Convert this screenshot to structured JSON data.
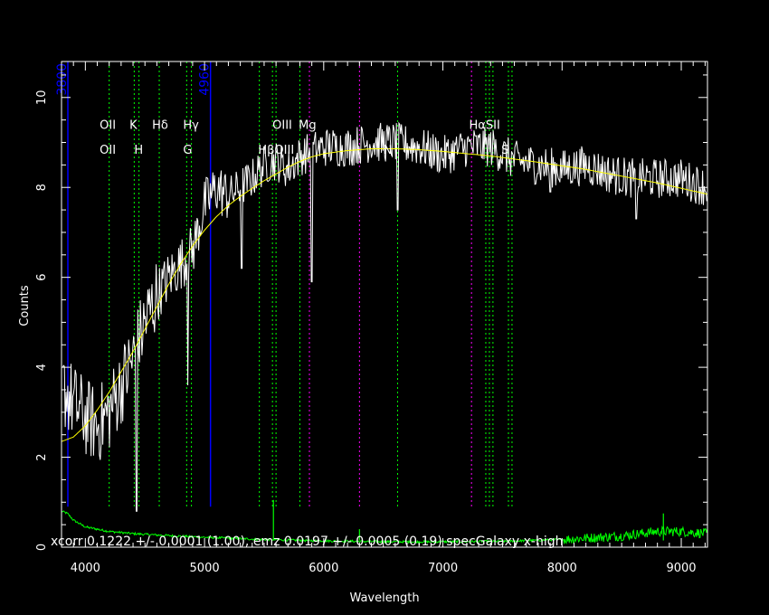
{
  "chart_data": {
    "type": "line",
    "xlabel": "Wavelength",
    "ylabel": "Counts",
    "xlim": [
      3800,
      9220
    ],
    "ylim": [
      0,
      10.8
    ],
    "xticks_major": [
      4000,
      5000,
      6000,
      7000,
      8000,
      9000
    ],
    "yticks_major": [
      0,
      2,
      4,
      6,
      8,
      10
    ],
    "footer_text": "xcorr  0.1222 +/-  0.0001 (1.00), emz  0.0197 +/-  0.0005 (0.19) specGalaxy x-high",
    "grid": false,
    "colors": {
      "background": "#000000",
      "axes": "#ffffff",
      "spectrum": "#ffffff",
      "model": "#ffff00",
      "error": "#00ff00",
      "emission_line": "#00ff00",
      "sky_line": "#ff00ff",
      "blue_marker": "#0000ff"
    },
    "blue_markers": [
      {
        "x": 3800,
        "label": "3800"
      },
      {
        "x": 5050,
        "label": "4960"
      }
    ],
    "spectral_lines": [
      {
        "x": 4200,
        "color": "green"
      },
      {
        "x": 4410,
        "color": "green"
      },
      {
        "x": 4450,
        "color": "green"
      },
      {
        "x": 4620,
        "color": "green"
      },
      {
        "x": 4850,
        "color": "green"
      },
      {
        "x": 4890,
        "color": "green"
      },
      {
        "x": 5460,
        "color": "green"
      },
      {
        "x": 5570,
        "color": "green"
      },
      {
        "x": 5600,
        "color": "green"
      },
      {
        "x": 5800,
        "color": "green"
      },
      {
        "x": 5880,
        "color": "magenta"
      },
      {
        "x": 6300,
        "color": "magenta"
      },
      {
        "x": 6620,
        "color": "green"
      },
      {
        "x": 7240,
        "color": "magenta"
      },
      {
        "x": 7360,
        "color": "green"
      },
      {
        "x": 7390,
        "color": "green"
      },
      {
        "x": 7420,
        "color": "green"
      },
      {
        "x": 7550,
        "color": "green"
      },
      {
        "x": 7580,
        "color": "green"
      }
    ],
    "line_labels": [
      {
        "text": "OII",
        "x": 4120,
        "y": 9.3
      },
      {
        "text": "K",
        "x": 4370,
        "y": 9.3
      },
      {
        "text": "Hδ",
        "x": 4560,
        "y": 9.3
      },
      {
        "text": "Hγ",
        "x": 4820,
        "y": 9.3
      },
      {
        "text": "OIII",
        "x": 5570,
        "y": 9.3
      },
      {
        "text": "Mg",
        "x": 5790,
        "y": 9.3
      },
      {
        "text": "HαSII",
        "x": 7220,
        "y": 9.3
      },
      {
        "text": "OII",
        "x": 4120,
        "y": 8.75
      },
      {
        "text": "H",
        "x": 4410,
        "y": 8.75
      },
      {
        "text": "G",
        "x": 4820,
        "y": 8.75
      },
      {
        "text": "HβOIII",
        "x": 5450,
        "y": 8.75
      },
      {
        "text": "N",
        "x": 6500,
        "y": 8.75
      },
      {
        "text": "S",
        "x": 7490,
        "y": 8.75
      }
    ],
    "model_series": {
      "name": "model",
      "x": [
        3800,
        3900,
        4000,
        4100,
        4200,
        4300,
        4400,
        4500,
        4600,
        4700,
        4800,
        4900,
        5000,
        5100,
        5200,
        5300,
        5400,
        5500,
        5600,
        5700,
        5800,
        5900,
        6000,
        6200,
        6400,
        6600,
        6800,
        7000,
        7200,
        7400,
        7600,
        7800,
        8000,
        8200,
        8400,
        8600,
        8800,
        9000,
        9220
      ],
      "y": [
        2.35,
        2.45,
        2.7,
        3.05,
        3.45,
        3.9,
        4.35,
        4.85,
        5.35,
        5.85,
        6.3,
        6.7,
        7.05,
        7.35,
        7.6,
        7.8,
        7.98,
        8.15,
        8.3,
        8.45,
        8.58,
        8.68,
        8.75,
        8.82,
        8.86,
        8.86,
        8.84,
        8.8,
        8.75,
        8.7,
        8.63,
        8.56,
        8.48,
        8.4,
        8.3,
        8.2,
        8.1,
        7.98,
        7.85
      ]
    },
    "spectrum_anchors": {
      "x": [
        3800,
        3900,
        4000,
        4100,
        4200,
        4300,
        4400,
        4500,
        4600,
        4700,
        4800,
        4900,
        5000,
        5100,
        5200,
        5300,
        5400,
        5500,
        5600,
        5700,
        5800,
        5900,
        6000,
        6200,
        6400,
        6600,
        6800,
        7000,
        7200,
        7400,
        7600,
        7800,
        8000,
        8200,
        8400,
        8600,
        8800,
        9000,
        9220
      ],
      "y": [
        3.6,
        3.2,
        2.9,
        2.7,
        3.0,
        3.6,
        4.2,
        5.0,
        5.6,
        6.0,
        6.3,
        6.6,
        7.6,
        8.0,
        7.8,
        8.0,
        8.2,
        8.5,
        8.6,
        8.4,
        8.7,
        8.8,
        8.9,
        8.9,
        9.0,
        9.0,
        8.9,
        8.7,
        8.9,
        8.9,
        8.6,
        8.5,
        8.4,
        8.5,
        8.3,
        8.2,
        8.2,
        8.2,
        8.0
      ]
    },
    "spectrum_dips": [
      {
        "x": 4430,
        "y": 0.8
      },
      {
        "x": 4860,
        "y": 3.6
      },
      {
        "x": 5310,
        "y": 6.2
      },
      {
        "x": 5900,
        "y": 5.9
      },
      {
        "x": 6620,
        "y": 7.5
      },
      {
        "x": 7900,
        "y": 7.9
      },
      {
        "x": 8620,
        "y": 7.3
      }
    ],
    "error_series": {
      "name": "error",
      "x": [
        3800,
        3850,
        3900,
        4000,
        4200,
        4400,
        4600,
        5000,
        5500,
        6000,
        6500,
        7000,
        7500,
        8000,
        8500,
        8800,
        9000,
        9220
      ],
      "y": [
        0.8,
        0.75,
        0.6,
        0.45,
        0.35,
        0.3,
        0.27,
        0.22,
        0.17,
        0.14,
        0.12,
        0.12,
        0.13,
        0.17,
        0.25,
        0.35,
        0.35,
        0.3
      ]
    },
    "error_spikes": [
      {
        "x": 5578,
        "y": 1.05
      },
      {
        "x": 6300,
        "y": 0.4
      },
      {
        "x": 8850,
        "y": 0.75
      }
    ]
  }
}
